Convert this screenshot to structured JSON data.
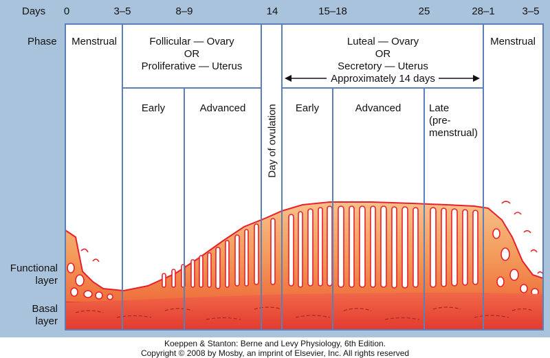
{
  "header": {
    "days_label": "Days",
    "phase_label": "Phase"
  },
  "days": [
    "0",
    "3–5",
    "8–9",
    "14",
    "15–18",
    "25",
    "28–1",
    "3–5"
  ],
  "phases": {
    "menstrual_left": "Menstrual",
    "follicular": [
      "Follicular — Ovary",
      "OR",
      "Proliferative — Uterus"
    ],
    "ovulation": "Day of ovulation",
    "luteal": [
      "Luteal — Ovary",
      "OR",
      "Secretory — Uterus",
      "Approximately 14 days"
    ],
    "menstrual_right": "Menstrual"
  },
  "subphases": {
    "follicular_early": "Early",
    "follicular_advanced": "Advanced",
    "luteal_early": "Early",
    "luteal_advanced": "Advanced",
    "luteal_late": [
      "Late",
      "(pre-",
      "menstrual)"
    ]
  },
  "layers": {
    "functional": [
      "Functional",
      "layer"
    ],
    "basal": [
      "Basal",
      "layer"
    ]
  },
  "footer": [
    "Koeppen & Stanton: Berne and Levy Physiology, 6th Edition.",
    "Copyright © 2008 by Mosby, an imprint of Elsevier, Inc. All rights reserved"
  ],
  "colors": {
    "panel": "#a9c3dc",
    "grid": "#5b7fb8",
    "functional_top": "#f5a86a",
    "functional_bottom": "#f07a44",
    "basal": "#e8483a",
    "gland_outline": "#e8202a"
  }
}
